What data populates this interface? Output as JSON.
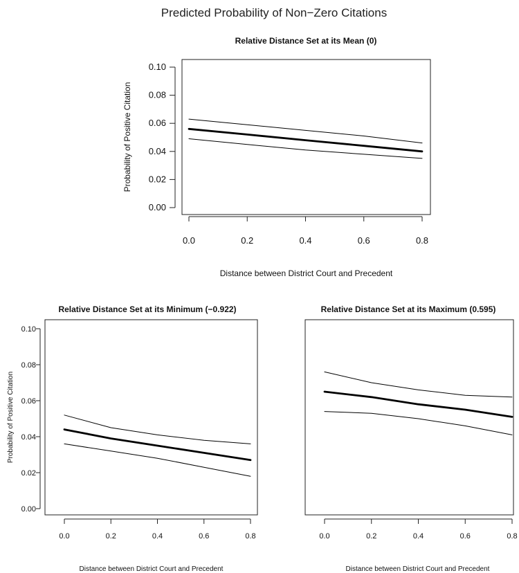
{
  "figure_title": "Predicted Probability of Non−Zero Citations",
  "chart_data": [
    {
      "type": "line",
      "title": "Relative Distance Set at its Mean (0)",
      "xlabel": "Distance between District Court and Precedent",
      "ylabel": "Probability of Positive Citation",
      "xlim": [
        0,
        0.8
      ],
      "ylim": [
        0,
        0.1
      ],
      "x_ticks": [
        "0.0",
        "0.2",
        "0.4",
        "0.6",
        "0.8"
      ],
      "y_ticks": [
        "0.00",
        "0.02",
        "0.04",
        "0.06",
        "0.08",
        "0.10"
      ],
      "x": [
        0.0,
        0.2,
        0.4,
        0.6,
        0.8
      ],
      "series": [
        {
          "role": "upper",
          "values": [
            0.063,
            0.059,
            0.055,
            0.051,
            0.046
          ]
        },
        {
          "role": "estimate",
          "values": [
            0.056,
            0.052,
            0.048,
            0.044,
            0.04
          ]
        },
        {
          "role": "lower",
          "values": [
            0.049,
            0.045,
            0.041,
            0.038,
            0.035
          ]
        }
      ],
      "grid": false
    },
    {
      "type": "line",
      "title": "Relative Distance Set at its Minimum (−0.922)",
      "xlabel": "Distance between District Court and Precedent",
      "ylabel": "Probability of Positive Citation",
      "xlim": [
        0,
        0.8
      ],
      "ylim": [
        0,
        0.1
      ],
      "x_ticks": [
        "0.0",
        "0.2",
        "0.4",
        "0.6",
        "0.8"
      ],
      "y_ticks": [
        "0.00",
        "0.02",
        "0.04",
        "0.06",
        "0.08",
        "0.10"
      ],
      "x": [
        0.0,
        0.2,
        0.4,
        0.6,
        0.8
      ],
      "series": [
        {
          "role": "upper",
          "values": [
            0.052,
            0.045,
            0.041,
            0.038,
            0.036
          ]
        },
        {
          "role": "estimate",
          "values": [
            0.044,
            0.039,
            0.035,
            0.031,
            0.027
          ]
        },
        {
          "role": "lower",
          "values": [
            0.036,
            0.032,
            0.028,
            0.023,
            0.018
          ]
        }
      ],
      "grid": false
    },
    {
      "type": "line",
      "title": "Relative Distance Set at its Maximum (0.595)",
      "xlabel": "Distance between District Court and Precedent",
      "ylabel": "",
      "xlim": [
        0,
        0.8
      ],
      "ylim": [
        0,
        0.1
      ],
      "x_ticks": [
        "0.0",
        "0.2",
        "0.4",
        "0.6",
        "0.8"
      ],
      "y_ticks": [],
      "x": [
        0.0,
        0.2,
        0.4,
        0.6,
        0.8
      ],
      "series": [
        {
          "role": "upper",
          "values": [
            0.076,
            0.07,
            0.066,
            0.063,
            0.062
          ]
        },
        {
          "role": "estimate",
          "values": [
            0.065,
            0.062,
            0.058,
            0.055,
            0.051
          ]
        },
        {
          "role": "lower",
          "values": [
            0.054,
            0.053,
            0.05,
            0.046,
            0.041
          ]
        }
      ],
      "grid": false
    }
  ]
}
